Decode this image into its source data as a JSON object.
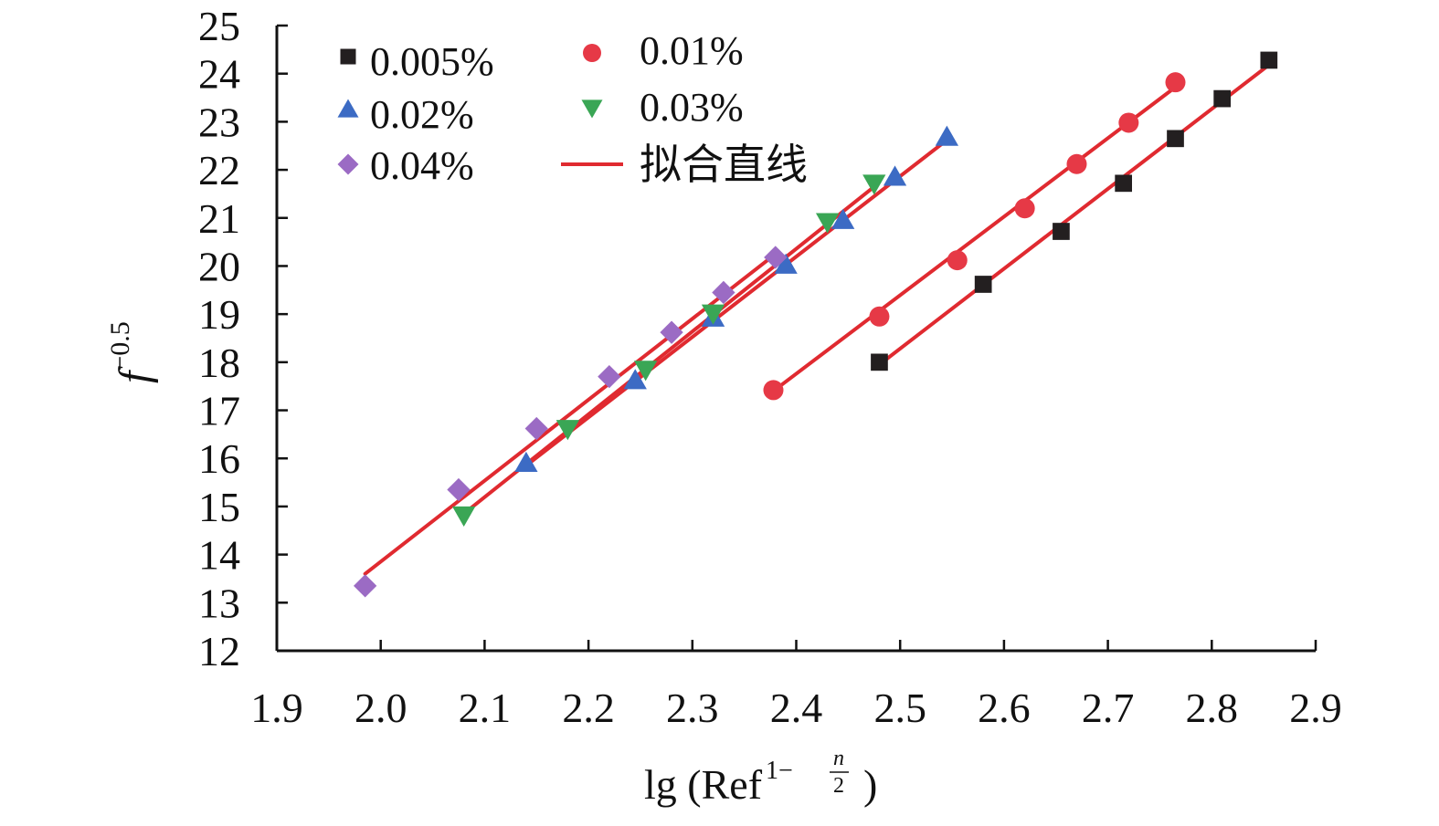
{
  "chart_data": {
    "type": "scatter",
    "xlabel": "lg (Ref",
    "xlabel_exponent": "1−",
    "xlabel_frac_num": "n",
    "xlabel_frac_den": "2",
    "xlabel_close": ")",
    "ylabel_base": "f",
    "ylabel_exponent": "−0.5",
    "xlim": [
      1.9,
      2.9
    ],
    "ylim": [
      12,
      25
    ],
    "xticks": [
      "1.9",
      "2.0",
      "2.1",
      "2.2",
      "2.3",
      "2.4",
      "2.5",
      "2.6",
      "2.7",
      "2.8",
      "2.9"
    ],
    "yticks": [
      "12",
      "13",
      "14",
      "15",
      "16",
      "17",
      "18",
      "19",
      "20",
      "21",
      "22",
      "23",
      "24",
      "25"
    ],
    "legend_position": "top-left",
    "fit_color": "#e02a30",
    "fit_label": "拟合直线",
    "series": [
      {
        "name": "0.005%",
        "marker": "square",
        "color": "#231f20",
        "points": [
          [
            2.48,
            18.0
          ],
          [
            2.58,
            19.62
          ],
          [
            2.655,
            20.72
          ],
          [
            2.715,
            21.72
          ],
          [
            2.765,
            22.65
          ],
          [
            2.81,
            23.48
          ],
          [
            2.855,
            24.28
          ]
        ],
        "fit": [
          [
            2.48,
            17.95
          ],
          [
            2.855,
            24.18
          ]
        ]
      },
      {
        "name": "0.01%",
        "marker": "circle",
        "color": "#e63946",
        "points": [
          [
            2.378,
            17.42
          ],
          [
            2.48,
            18.95
          ],
          [
            2.555,
            20.12
          ],
          [
            2.62,
            21.2
          ],
          [
            2.67,
            22.12
          ],
          [
            2.72,
            22.98
          ],
          [
            2.765,
            23.82
          ]
        ],
        "fit": [
          [
            2.378,
            17.4
          ],
          [
            2.765,
            23.72
          ]
        ]
      },
      {
        "name": "0.02%",
        "marker": "triangle-up",
        "color": "#3c6bc4",
        "points": [
          [
            2.14,
            15.9
          ],
          [
            2.245,
            17.62
          ],
          [
            2.32,
            18.92
          ],
          [
            2.39,
            20.02
          ],
          [
            2.445,
            20.95
          ],
          [
            2.495,
            21.85
          ],
          [
            2.545,
            22.68
          ]
        ],
        "fit": [
          [
            2.14,
            15.85
          ],
          [
            2.545,
            22.62
          ]
        ]
      },
      {
        "name": "0.03%",
        "marker": "triangle-down",
        "color": "#3aa655",
        "points": [
          [
            2.08,
            14.82
          ],
          [
            2.18,
            16.62
          ],
          [
            2.255,
            17.85
          ],
          [
            2.32,
            19.02
          ],
          [
            2.43,
            20.92
          ],
          [
            2.475,
            21.72
          ]
        ],
        "fit": [
          [
            2.08,
            14.85
          ],
          [
            2.475,
            21.65
          ]
        ]
      },
      {
        "name": "0.04%",
        "marker": "diamond",
        "color": "#9b6bc4",
        "points": [
          [
            1.985,
            13.35
          ],
          [
            2.075,
            15.35
          ],
          [
            2.15,
            16.62
          ],
          [
            2.22,
            17.7
          ],
          [
            2.28,
            18.62
          ],
          [
            2.33,
            19.45
          ],
          [
            2.38,
            20.18
          ]
        ],
        "fit": [
          [
            1.985,
            13.6
          ],
          [
            2.38,
            20.25
          ]
        ]
      }
    ]
  }
}
